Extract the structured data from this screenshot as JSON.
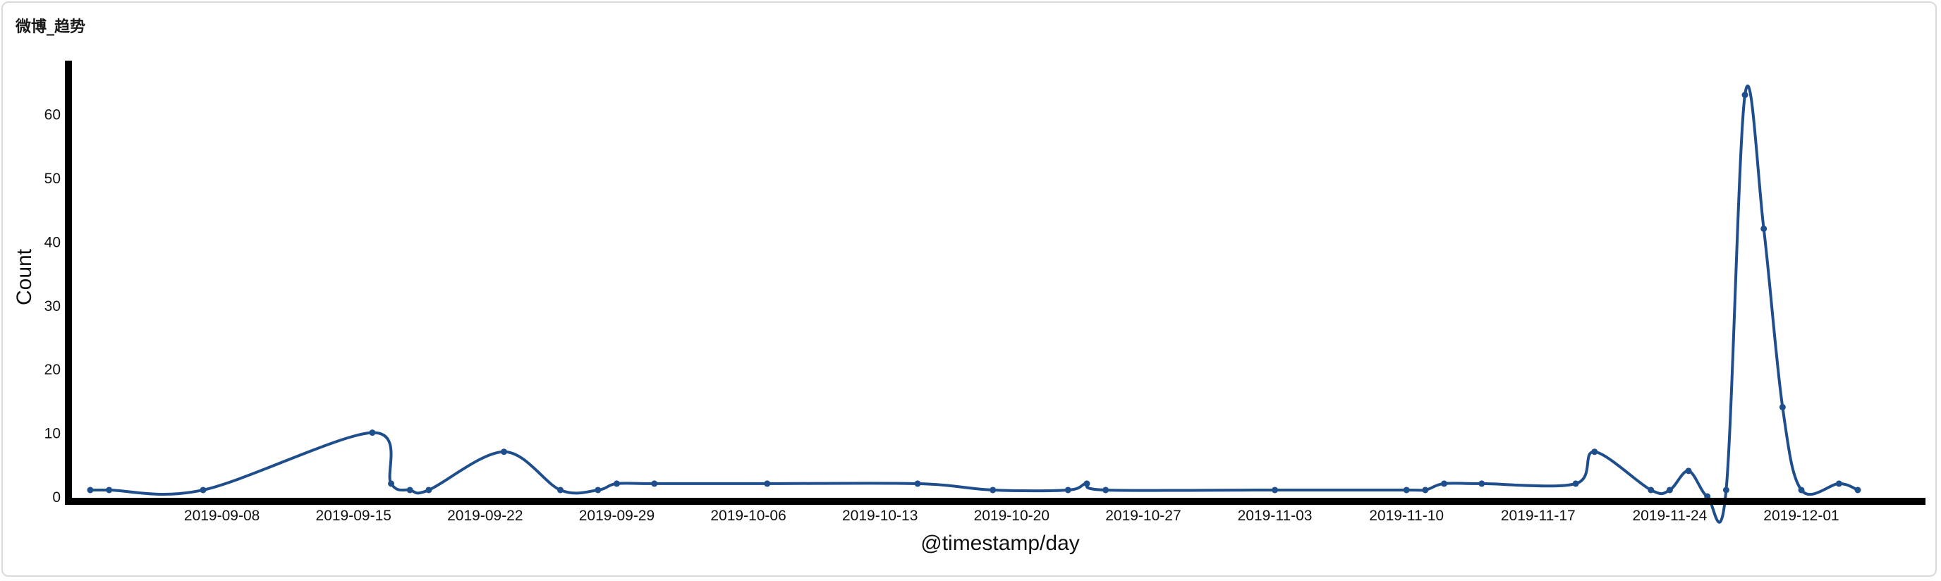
{
  "panel": {
    "title": "微博_趋势"
  },
  "chart_data": {
    "type": "line",
    "title": "",
    "xlabel": "@timestamp/day",
    "ylabel": "Count",
    "ylim": [
      0,
      65
    ],
    "y_ticks": [
      0,
      10,
      20,
      30,
      40,
      50,
      60
    ],
    "x_range": [
      "2019-09-01",
      "2019-12-04"
    ],
    "x_ticks": [
      "2019-09-08",
      "2019-09-15",
      "2019-09-22",
      "2019-09-29",
      "2019-10-06",
      "2019-10-13",
      "2019-10-20",
      "2019-10-27",
      "2019-11-03",
      "2019-11-10",
      "2019-11-17",
      "2019-11-24",
      "2019-12-01"
    ],
    "grid": false,
    "line_color": "#1f4e8c",
    "axis_color": "#000000",
    "series": [
      {
        "points": [
          [
            "2019-09-01",
            1
          ],
          [
            "2019-09-02",
            1
          ],
          [
            "2019-09-07",
            1
          ],
          [
            "2019-09-16",
            10
          ],
          [
            "2019-09-17",
            2
          ],
          [
            "2019-09-18",
            1
          ],
          [
            "2019-09-19",
            1
          ],
          [
            "2019-09-23",
            7
          ],
          [
            "2019-09-26",
            1
          ],
          [
            "2019-09-28",
            1
          ],
          [
            "2019-09-29",
            2
          ],
          [
            "2019-10-01",
            2
          ],
          [
            "2019-10-07",
            2
          ],
          [
            "2019-10-15",
            2
          ],
          [
            "2019-10-19",
            1
          ],
          [
            "2019-10-23",
            1
          ],
          [
            "2019-10-24",
            2
          ],
          [
            "2019-10-25",
            1
          ],
          [
            "2019-11-03",
            1
          ],
          [
            "2019-11-10",
            1
          ],
          [
            "2019-11-11",
            1
          ],
          [
            "2019-11-12",
            2
          ],
          [
            "2019-11-14",
            2
          ],
          [
            "2019-11-19",
            2
          ],
          [
            "2019-11-20",
            7
          ],
          [
            "2019-11-23",
            1
          ],
          [
            "2019-11-24",
            1
          ],
          [
            "2019-11-25",
            4
          ],
          [
            "2019-11-26",
            0
          ],
          [
            "2019-11-27",
            1
          ],
          [
            "2019-11-28",
            63
          ],
          [
            "2019-11-29",
            42
          ],
          [
            "2019-11-30",
            14
          ],
          [
            "2019-12-01",
            1
          ],
          [
            "2019-12-03",
            2
          ],
          [
            "2019-12-04",
            1
          ]
        ]
      }
    ]
  }
}
